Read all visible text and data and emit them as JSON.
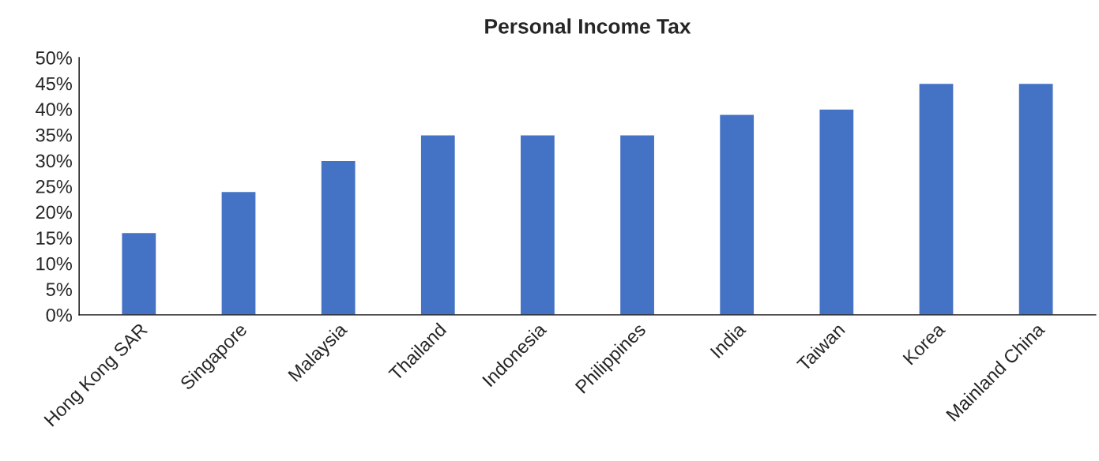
{
  "chart_data": {
    "type": "bar",
    "title": "Personal Income Tax",
    "categories": [
      "Hong Kong SAR",
      "Singapore",
      "Malaysia",
      "Thailand",
      "Indonesia",
      "Philippines",
      "India",
      "Taiwan",
      "Korea",
      "Mainland China"
    ],
    "values": [
      16,
      24,
      30,
      35,
      35,
      35,
      39,
      40,
      45,
      45
    ],
    "color": "#4472c4",
    "ylim": [
      0,
      50
    ],
    "yticks": [
      {
        "value": 0,
        "label": "0%"
      },
      {
        "value": 5,
        "label": "5%"
      },
      {
        "value": 10,
        "label": "10%"
      },
      {
        "value": 15,
        "label": "15%"
      },
      {
        "value": 20,
        "label": "20%"
      },
      {
        "value": 25,
        "label": "25%"
      },
      {
        "value": 30,
        "label": "30%"
      },
      {
        "value": 35,
        "label": "35%"
      },
      {
        "value": 40,
        "label": "40%"
      },
      {
        "value": 45,
        "label": "45%"
      },
      {
        "value": 50,
        "label": "50%"
      }
    ],
    "grid": false,
    "legend": false
  }
}
